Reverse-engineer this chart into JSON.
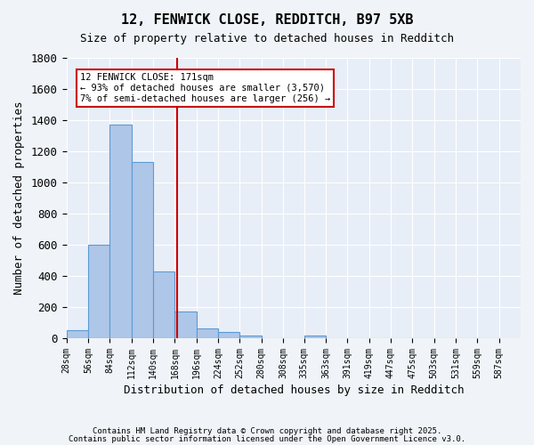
{
  "title1": "12, FENWICK CLOSE, REDDITCH, B97 5XB",
  "title2": "Size of property relative to detached houses in Redditch",
  "xlabel": "Distribution of detached houses by size in Redditch",
  "ylabel": "Number of detached properties",
  "bar_values": [
    50,
    600,
    1370,
    1130,
    430,
    170,
    65,
    40,
    15,
    0,
    0,
    15,
    0,
    0,
    0,
    0,
    0,
    0,
    0,
    0
  ],
  "bin_labels": [
    "28sqm",
    "56sqm",
    "84sqm",
    "112sqm",
    "140sqm",
    "168sqm",
    "196sqm",
    "224sqm",
    "252sqm",
    "280sqm",
    "308sqm",
    "335sqm",
    "363sqm",
    "391sqm",
    "419sqm",
    "447sqm",
    "475sqm",
    "503sqm",
    "531sqm",
    "559sqm",
    "587sqm"
  ],
  "bin_edges": [
    28,
    56,
    84,
    112,
    140,
    168,
    196,
    224,
    252,
    280,
    308,
    335,
    363,
    391,
    419,
    447,
    475,
    503,
    531,
    559,
    587
  ],
  "bar_color": "#aec6e8",
  "bar_edge_color": "#5b9bd5",
  "vline_x": 171,
  "vline_color": "#cc0000",
  "annotation_text": "12 FENWICK CLOSE: 171sqm\n← 93% of detached houses are smaller (3,570)\n7% of semi-detached houses are larger (256) →",
  "annotation_box_color": "#cc0000",
  "ylim": [
    0,
    1800
  ],
  "yticks": [
    0,
    200,
    400,
    600,
    800,
    1000,
    1200,
    1400,
    1600,
    1800
  ],
  "background_color": "#e8eef7",
  "grid_color": "#ffffff",
  "footer1": "Contains HM Land Registry data © Crown copyright and database right 2025.",
  "footer2": "Contains public sector information licensed under the Open Government Licence v3.0."
}
